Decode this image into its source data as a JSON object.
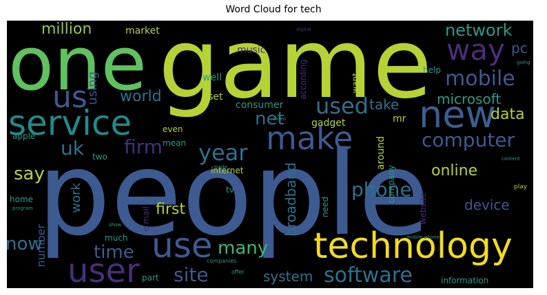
{
  "title": "Word Cloud for tech",
  "words": [
    {
      "text": "people"
    },
    {
      "text": "game"
    },
    {
      "text": "one"
    },
    {
      "text": "technology"
    },
    {
      "text": "new"
    },
    {
      "text": "service"
    },
    {
      "text": "make"
    },
    {
      "text": "use"
    },
    {
      "text": "user"
    },
    {
      "text": "us"
    },
    {
      "text": "way"
    },
    {
      "text": "mobile"
    },
    {
      "text": "year"
    },
    {
      "text": "net"
    },
    {
      "text": "used"
    },
    {
      "text": "computer"
    },
    {
      "text": "software"
    },
    {
      "text": "many"
    },
    {
      "text": "site"
    },
    {
      "text": "time"
    },
    {
      "text": "phone"
    },
    {
      "text": "firm"
    },
    {
      "text": "uk"
    },
    {
      "text": "say"
    },
    {
      "text": "network"
    },
    {
      "text": "million"
    },
    {
      "text": "pc"
    },
    {
      "text": "world"
    },
    {
      "text": "microsoft"
    },
    {
      "text": "data"
    },
    {
      "text": "now"
    },
    {
      "text": "device"
    },
    {
      "text": "first"
    },
    {
      "text": "online"
    },
    {
      "text": "broadband"
    },
    {
      "text": "system"
    },
    {
      "text": "using"
    },
    {
      "text": "work"
    },
    {
      "text": "take"
    },
    {
      "text": "number"
    },
    {
      "text": "market"
    },
    {
      "text": "music"
    },
    {
      "text": "well"
    },
    {
      "text": "set"
    },
    {
      "text": "consumer"
    },
    {
      "text": "gadget"
    },
    {
      "text": "mr"
    },
    {
      "text": "help"
    },
    {
      "text": "want"
    },
    {
      "text": "according"
    },
    {
      "text": "even"
    },
    {
      "text": "apple"
    },
    {
      "text": "two"
    },
    {
      "text": "mean"
    },
    {
      "text": "internet"
    },
    {
      "text": "around"
    },
    {
      "text": "company"
    },
    {
      "text": "website"
    },
    {
      "text": "home"
    },
    {
      "text": "much"
    },
    {
      "text": "tv"
    },
    {
      "text": "need"
    },
    {
      "text": "e mail"
    },
    {
      "text": "part"
    },
    {
      "text": "information"
    },
    {
      "text": "companies"
    },
    {
      "text": "offer"
    },
    {
      "text": "mobile phone"
    },
    {
      "text": "program"
    },
    {
      "text": "show"
    },
    {
      "text": "made"
    },
    {
      "text": "going"
    },
    {
      "text": "content"
    },
    {
      "text": "play"
    },
    {
      "text": "digital"
    },
    {
      "text": "video"
    }
  ]
}
